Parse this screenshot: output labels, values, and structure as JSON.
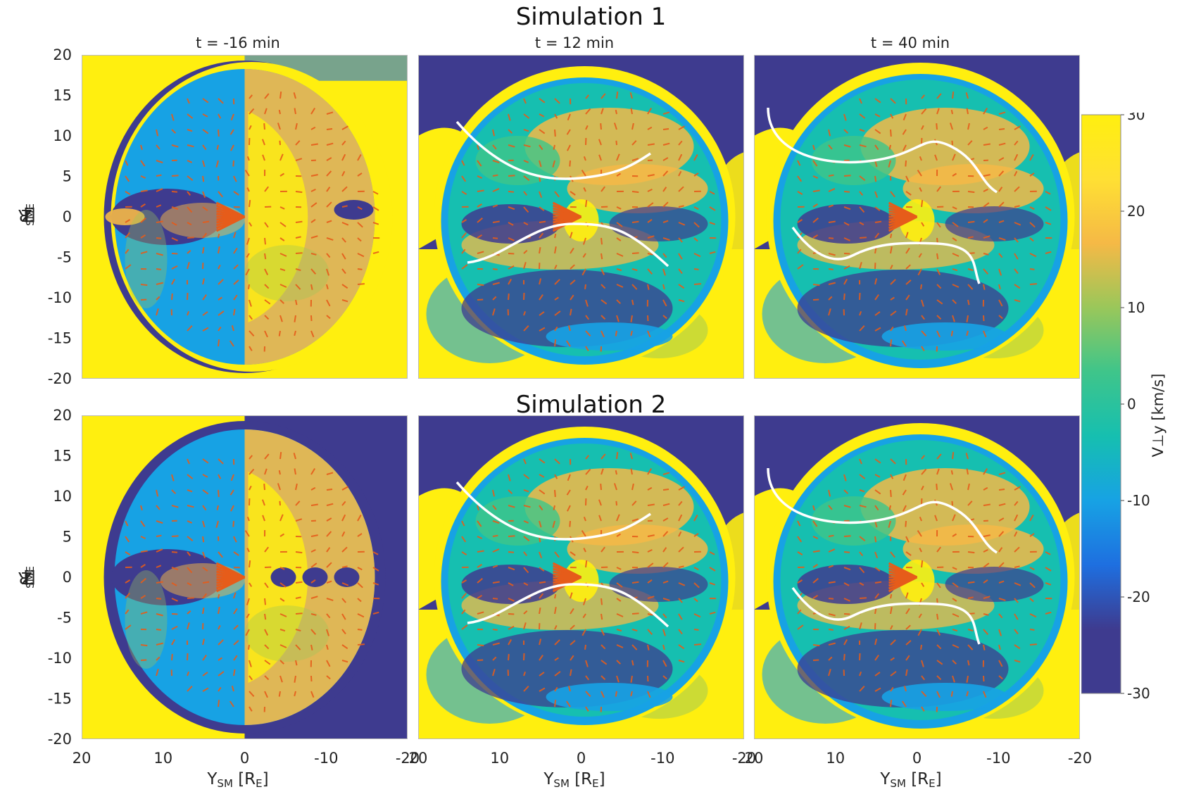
{
  "figure": {
    "sim1_title": "Simulation 1",
    "sim2_title": "Simulation 2",
    "panel_titles": [
      "t = -16 min",
      "t = 12 min",
      "t = 40 min"
    ],
    "ylabel": {
      "main": "Z",
      "sub": "SM",
      "unit_open": " [R",
      "unit_sub": "E",
      "unit_close": "]"
    },
    "xlabel": {
      "main": "Y",
      "sub": "SM",
      "unit_open": " [R",
      "unit_sub": "E",
      "unit_close": "]"
    },
    "colorbar_label": "V⊥y  [km/s]"
  },
  "chart_data": {
    "type": "heatmap",
    "rows": [
      "Simulation 1",
      "Simulation 2"
    ],
    "columns": [
      "t = -16 min",
      "t = 12 min",
      "t = 40 min"
    ],
    "x_axis": {
      "label": "YSM [RE]",
      "lim": [
        20,
        -20
      ],
      "ticks": [
        20,
        10,
        0,
        -10,
        -20
      ]
    },
    "y_axis": {
      "label": "ZSM [RE]",
      "lim": [
        -20,
        20
      ],
      "ticks": [
        20,
        15,
        10,
        5,
        0,
        -5,
        -10,
        -15,
        -20
      ]
    },
    "colorbar": {
      "label": "V⊥y [km/s]",
      "lim": [
        -30,
        30
      ],
      "ticks": [
        30,
        20,
        10,
        0,
        -10,
        -20,
        -30
      ],
      "colors": [
        "#3e3b8f",
        "#3e3b8f",
        "#1e6fe0",
        "#17a2e4",
        "#16bfb0",
        "#3fc58a",
        "#9ac75a",
        "#f5b946",
        "#ffe033",
        "#ffef0f"
      ]
    },
    "overlays": [
      "velocity vectors (orange arrows)",
      "white curves (panels t = 12 min and t = 40 min)"
    ],
    "x_tick_labels": [
      "20",
      "10",
      "0",
      "-10",
      "-20"
    ],
    "y_tick_labels": [
      "20",
      "15",
      "10",
      "5",
      "0",
      "-5",
      "-10",
      "-15",
      "-20"
    ],
    "colorbar_tick_labels": [
      "30",
      "20",
      "10",
      "0",
      "-10",
      "-20",
      "-30"
    ]
  }
}
